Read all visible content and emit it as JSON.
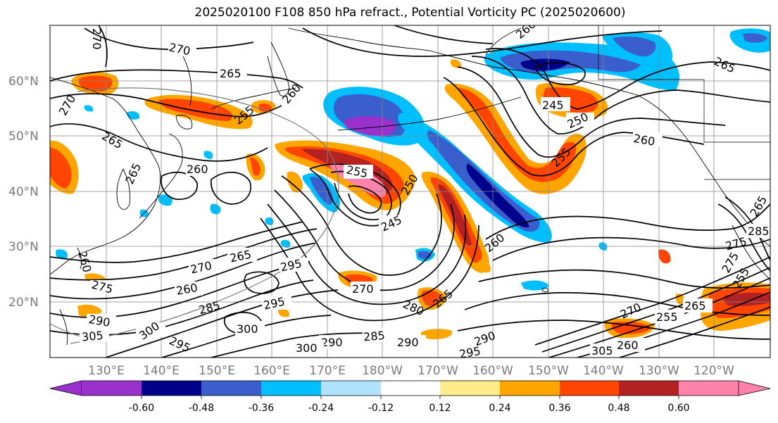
{
  "title": "2025020100 F108 850 hPa refract., Potential Vorticity PC (2025020600)",
  "lat_labels": [
    {
      "text": "60°N",
      "lat": 60
    },
    {
      "text": "50°N",
      "lat": 50
    },
    {
      "text": "40°N",
      "lat": 40
    },
    {
      "text": "30°N",
      "lat": 30
    },
    {
      "text": "20°N",
      "lat": 20
    }
  ],
  "lon_labels": [
    "130°E",
    "140°E",
    "150°E",
    "160°E",
    "170°E",
    "180°W",
    "170°W",
    "160°W",
    "150°W",
    "140°W",
    "130°W",
    "120°W"
  ],
  "colorbar": {
    "colors": [
      "#9932cc",
      "#00008b",
      "#3a5fcd",
      "#00bfff",
      "#b0e2ff",
      "#ffffff",
      "#ffec8b",
      "#ffa500",
      "#ff4500",
      "#b22222",
      "#ff82ab"
    ],
    "tick_labels": [
      "-0.60",
      "-0.48",
      "-0.36",
      "-0.24",
      "-0.12",
      "0.12",
      "0.24",
      "0.36",
      "0.48",
      "0.60"
    ]
  },
  "contour_labels": [
    "270",
    "270",
    "265",
    "270",
    "260",
    "265",
    "255",
    "260",
    "265",
    "260",
    "245",
    "250",
    "260",
    "255",
    "255",
    "265",
    "250",
    "245",
    "260",
    "265",
    "275",
    "260",
    "265",
    "270",
    "295",
    "260",
    "275",
    "290",
    "285",
    "295",
    "305",
    "300",
    "300",
    "295",
    "270",
    "280",
    "265",
    "285",
    "290",
    "290",
    "295",
    "290",
    "300",
    "305",
    "260",
    "270",
    "255",
    "265",
    "275",
    "255",
    "285"
  ]
}
